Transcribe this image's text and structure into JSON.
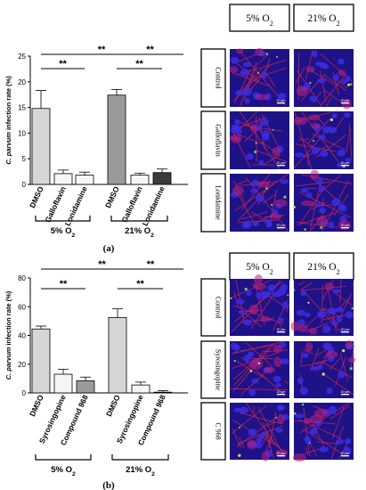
{
  "chart_data": [
    {
      "type": "bar",
      "panel_label": "(a)",
      "ylabel": "C. parvum infection rate (%)",
      "ylim": [
        0,
        25
      ],
      "yticks": [
        "0",
        "5",
        "10",
        "15",
        "20",
        "25"
      ],
      "categories": [
        "DMSO",
        "Galloflavin",
        "Lonidamine",
        "DMSO",
        "Galloflavin",
        "Lonidamine"
      ],
      "values": [
        14.8,
        2.1,
        1.8,
        17.4,
        1.8,
        2.3
      ],
      "errors": [
        3.5,
        0.7,
        0.6,
        1.1,
        0.4,
        0.7
      ],
      "colors": [
        "#d6d6d6",
        "#f6f6f6",
        "#f6f6f6",
        "#9a9a9a",
        "#f6f6f6",
        "#3a3a3a"
      ],
      "groups": [
        "5% O",
        "21% O"
      ],
      "group_subscript": "2",
      "significance": [
        "**",
        "**",
        "**",
        "**"
      ]
    },
    {
      "type": "bar",
      "panel_label": "(b)",
      "ylabel": "C. parvum infection rate (%)",
      "ylim": [
        0,
        80
      ],
      "yticks": [
        "0",
        "20",
        "40",
        "60",
        "80"
      ],
      "categories": [
        "DMSO",
        "Syrosingopine",
        "Compound 968",
        "DMSO",
        "Syrosingopine",
        "Compound 968"
      ],
      "values": [
        44.5,
        13.0,
        8.5,
        52.5,
        5.5,
        0.5
      ],
      "errors": [
        2.0,
        3.5,
        2.5,
        6.0,
        2.0,
        1.0
      ],
      "colors": [
        "#d6d6d6",
        "#f6f6f6",
        "#9a9a9a",
        "#d6d6d6",
        "#f6f6f6",
        "#3a3a3a"
      ],
      "groups": [
        "5% O",
        "21% O"
      ],
      "group_subscript": "2",
      "significance": [
        "**",
        "**",
        "**",
        "**"
      ]
    }
  ],
  "micrographs": [
    {
      "headers": [
        "5% O",
        "21% O"
      ],
      "header_subscript": "2",
      "rows": [
        "Control",
        "Galloflavin",
        "Lonidamine"
      ],
      "scale_bar": "20 µm"
    },
    {
      "headers": [
        "5% O",
        "21% O"
      ],
      "header_subscript": "2",
      "rows": [
        "Control",
        "Syrosingopine",
        "C 968"
      ],
      "scale_bar": "20 µm"
    }
  ]
}
